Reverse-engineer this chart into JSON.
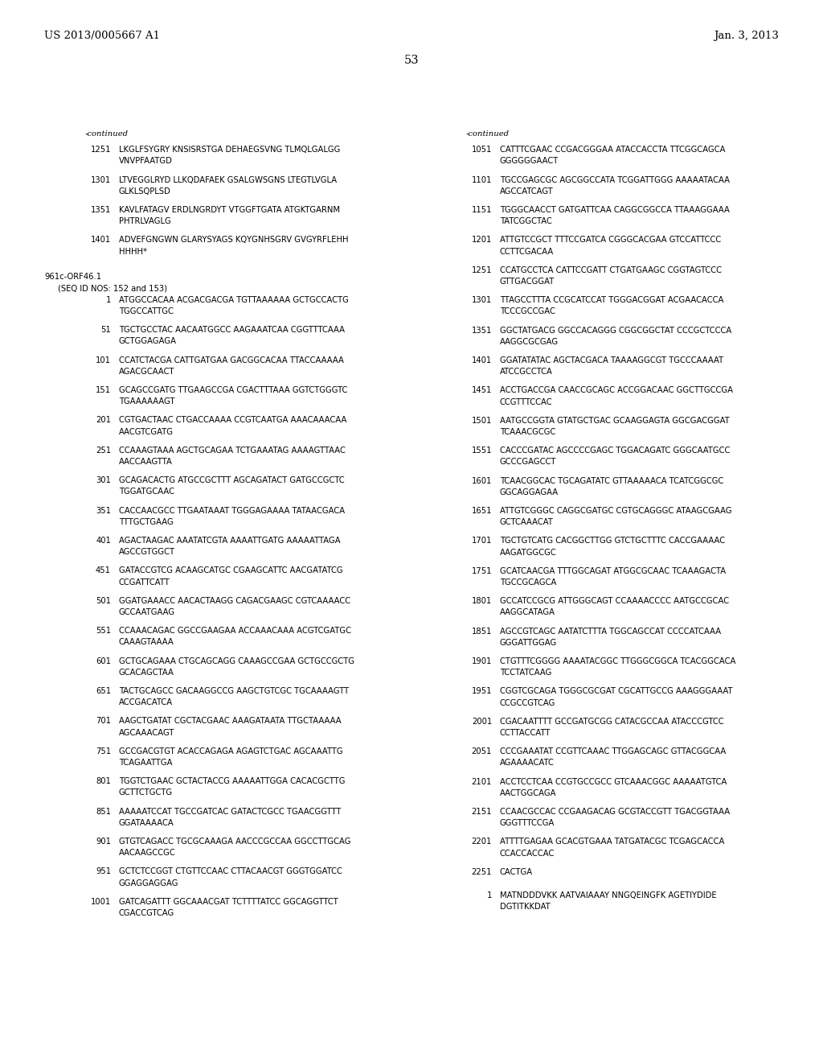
{
  "page_header_left": "US 2013/0005667 A1",
  "page_header_right": "Jan. 3, 2013",
  "page_number": "53",
  "background_color": "#ffffff",
  "text_color": "#000000",
  "font_size": 7.2,
  "header_font_size": 9.5,
  "mono_font": "Courier New",
  "left_column": [
    {
      "type": "header",
      "text": "-continued"
    },
    {
      "type": "seq",
      "num": "1251",
      "line1": "LKGLFSYGRY KNSISRSTGA DEHAEGSVNG TLMQLGALGG",
      "line2": "VNVPFAATGD"
    },
    {
      "type": "seq",
      "num": "1301",
      "line1": "LTVEGGLRYD LLKQDAFAEK GSALGWSGNS LTEGTLVGLA",
      "line2": "GLKLSQPLSD"
    },
    {
      "type": "seq",
      "num": "1351",
      "line1": "KAVLFATAGV ERDLNGRDYT VTGGFTGATA ATGKTGARNM",
      "line2": "PHTRLVAGLG"
    },
    {
      "type": "seq",
      "num": "1401",
      "line1": "ADVEFGNGWN GLARYSYAGS KQYGNHSGRV GVGYRFLEHH",
      "line2": "HHHH*"
    },
    {
      "type": "blank"
    },
    {
      "type": "section",
      "text": "961c-ORF46.1"
    },
    {
      "type": "seqid",
      "text": "(SEQ ID NOS: 152 and 153)"
    },
    {
      "type": "seq",
      "num": "1",
      "line1": "ATGGCCACAA ACGACGACGA TGTTAAAAAA GCTGCCACTG",
      "line2": "TGGCCATTGC"
    },
    {
      "type": "seq",
      "num": "51",
      "line1": "TGCTGCCTAC AACAATGGCC AAGAAATCAA CGGTTTCAAA",
      "line2": "GCTGGAGAGA"
    },
    {
      "type": "seq",
      "num": "101",
      "line1": "CCATCTACGA CATTGATGAA GACGGCACAA TTACCAAAAA",
      "line2": "AGACGCAACT"
    },
    {
      "type": "seq",
      "num": "151",
      "line1": "GCAGCCGATG TTGAAGCCGA CGACTTTAAA GGTCTGGGTC",
      "line2": "TGAAAAAAGT"
    },
    {
      "type": "seq",
      "num": "201",
      "line1": "CGTGACTAAC CTGACCAAAA CCGTCAATGA AAACAAACAA",
      "line2": "AACGTCGATG"
    },
    {
      "type": "seq",
      "num": "251",
      "line1": "CCAAAGTAAA AGCTGCAGAA TCTGAAATAG AAAAGTTAAC",
      "line2": "AACCAAGTTA"
    },
    {
      "type": "seq",
      "num": "301",
      "line1": "GCAGACACTG ATGCCGCTTT AGCAGATACT GATGCCGCTC",
      "line2": "TGGATGCAAC"
    },
    {
      "type": "seq",
      "num": "351",
      "line1": "CACCAACGCC TTGAATAAAT TGGGAGAAAA TATAACGACA",
      "line2": "TTTGCTGAAG"
    },
    {
      "type": "seq",
      "num": "401",
      "line1": "AGACTAAGAC AAATATCGTA AAAATTGATG AAAAATTAGA",
      "line2": "AGCCGTGGCT"
    },
    {
      "type": "seq",
      "num": "451",
      "line1": "GATACCGTCG ACAAGCATGC CGAAGCATTC AACGATATCG",
      "line2": "CCGATTCATT"
    },
    {
      "type": "seq",
      "num": "501",
      "line1": "GGATGAAACC AACACTAAGG CAGACGAAGC CGTCAAAACC",
      "line2": "GCCAATGAAG"
    },
    {
      "type": "seq",
      "num": "551",
      "line1": "CCAAACAGAC GGCCGAAGAA ACCAAACAAA ACGTCGATGC",
      "line2": "CAAAGTAAAA"
    },
    {
      "type": "seq",
      "num": "601",
      "line1": "GCTGCAGAAA CTGCAGCAGG CAAAGCCGAA GCTGCCGCTG",
      "line2": "GCACAGCTAA"
    },
    {
      "type": "seq",
      "num": "651",
      "line1": "TACTGCAGCC GACAAGGCCG AAGCTGTCGC TGCAAAAGTT",
      "line2": "ACCGACATCA"
    },
    {
      "type": "seq",
      "num": "701",
      "line1": "AAGCTGATAT CGCTACGAAC AAAGATAATA TTGCTAAAAA",
      "line2": "AGCAAACAGT"
    },
    {
      "type": "seq",
      "num": "751",
      "line1": "GCCGACGTGT ACACCAGAGA AGAGTCTGAC AGCAAATTG",
      "line2": "TCAGAATTGA"
    },
    {
      "type": "seq",
      "num": "801",
      "line1": "TGGTCTGAAC GCTACTACCG AAAAATTGGA CACACGCTTG",
      "line2": "GCTTCTGCTG"
    },
    {
      "type": "seq",
      "num": "851",
      "line1": "AAAAATCCAT TGCCGATCAC GATACTCGCC TGAACGGTTT",
      "line2": "GGATAAAACA"
    },
    {
      "type": "seq",
      "num": "901",
      "line1": "GTGTCAGACC TGCGCAAAGA AACCCGCCAA GGCCTTGCAG",
      "line2": "AACAAGCCGC"
    },
    {
      "type": "seq",
      "num": "951",
      "line1": "GCTCTCCGGT CTGTTCCAAC CTTACAACGT GGGTGGATCC",
      "line2": "GGAGGAGGAG"
    },
    {
      "type": "seq",
      "num": "1001",
      "line1": "GATCAGATTT GGCAAACGAT TCTTTTATCC GGCAGGTTCT",
      "line2": "CGACCGTCAG"
    }
  ],
  "right_column": [
    {
      "type": "header",
      "text": "-continued"
    },
    {
      "type": "seq",
      "num": "1051",
      "line1": "CATTTCGAAC CCGACGGGAA ATACCACCTA TTCGGCAGCA",
      "line2": "GGGGGGAACT"
    },
    {
      "type": "seq",
      "num": "1101",
      "line1": "TGCCGAGCGC AGCGGCCATA TCGGATTGGG AAAAATACAA",
      "line2": "AGCCATCAGT"
    },
    {
      "type": "seq",
      "num": "1151",
      "line1": "TGGGCAACCT GATGATTCAA CAGGCGGCCA TTAAAGGAAA",
      "line2": "TATCGGCTAC"
    },
    {
      "type": "seq",
      "num": "1201",
      "line1": "ATTGTCCGCT TTTCCGATCA CGGGCACGAA GTCCATTCCC",
      "line2": "CCTTCGACAA"
    },
    {
      "type": "seq",
      "num": "1251",
      "line1": "CCATGCCTCA CATTCCGATT CTGATGAAGC CGGTAGTCCC",
      "line2": "GTTGACGGAT"
    },
    {
      "type": "seq",
      "num": "1301",
      "line1": "TTAGCCTTTA CCGCATCCAT TGGGACGGAT ACGAACACCA",
      "line2": "TCCCGCCGAC"
    },
    {
      "type": "seq",
      "num": "1351",
      "line1": "GGCTATGACG GGCCACAGGG CGGCGGCTAT CCCGCTCCCA",
      "line2": "AAGGCGCGAG"
    },
    {
      "type": "seq",
      "num": "1401",
      "line1": "GGATATATAC AGCTACGACA TAAAAGGCGT TGCCCAAAAT",
      "line2": "ATCCGCCTCA"
    },
    {
      "type": "seq",
      "num": "1451",
      "line1": "ACCTGACCGA CAACCGCAGC ACCGGACAAC GGCTTGCCGA",
      "line2": "CCGTTTCCAC"
    },
    {
      "type": "seq",
      "num": "1501",
      "line1": "AATGCCGGTA GTATGCTGAC GCAAGGAGTA GGCGACGGAT",
      "line2": "TCAAACGCGC"
    },
    {
      "type": "seq",
      "num": "1551",
      "line1": "CACCCGATAC AGCCCCGAGC TGGACAGATC GGGCAATGCC",
      "line2": "GCCCGAGCCT"
    },
    {
      "type": "seq",
      "num": "1601",
      "line1": "TCAACGGCAC TGCAGATATC GTTAAAAACA TCATCGGCGC",
      "line2": "GGCAGGAGAA"
    },
    {
      "type": "seq",
      "num": "1651",
      "line1": "ATTGTCGGGC CAGGCGATGC CGTGCAGGGC ATAAGCGAAG",
      "line2": "GCTCAAACAT"
    },
    {
      "type": "seq",
      "num": "1701",
      "line1": "TGCTGTCATG CACGGCTTGG GTCTGCTTTC CACCGAAAAC",
      "line2": "AAGATGGCGC"
    },
    {
      "type": "seq",
      "num": "1751",
      "line1": "GCATCAACGA TTTGGCAGAT ATGGCGCAAC TCAAAGACTA",
      "line2": "TGCCGCAGCA"
    },
    {
      "type": "seq",
      "num": "1801",
      "line1": "GCCATCCGCG ATTGGGCAGT CCAAAACCCC AATGCCGCAC",
      "line2": "AAGGCATAGA"
    },
    {
      "type": "seq",
      "num": "1851",
      "line1": "AGCCGTCAGC AATATCTTTA TGGCAGCCAT CCCCATCAAA",
      "line2": "GGGATTGGAG"
    },
    {
      "type": "seq",
      "num": "1901",
      "line1": "CTGTTTCGGGG AAAATACGGC TTGGGCGGCA TCACGGCACA",
      "line2": "TCCTATCAAG"
    },
    {
      "type": "seq",
      "num": "1951",
      "line1": "CGGTCGCAGA TGGGCGCGAT CGCATTGCCG AAAGGGAAAT",
      "line2": "CCGCCGTCAG"
    },
    {
      "type": "seq",
      "num": "2001",
      "line1": "CGACAATTTT GCCGATGCGG CATACGCCAA ATACCCGTCC",
      "line2": "CCTTACCATT"
    },
    {
      "type": "seq",
      "num": "2051",
      "line1": "CCCGAAATAT CCGTTCAAAC TTGGAGCAGC GTTACGGCAA",
      "line2": "AGAAAACATC"
    },
    {
      "type": "seq",
      "num": "2101",
      "line1": "ACCTCCTCAA CCGTGCCGCC GTCAAACGGC AAAAATGTCA",
      "line2": "AACTGGCAGA"
    },
    {
      "type": "seq",
      "num": "2151",
      "line1": "CCAACGCCAC CCGAAGACAG GCGTACCGTT TGACGGTAAA",
      "line2": "GGGTTTCCGA"
    },
    {
      "type": "seq",
      "num": "2201",
      "line1": "ATTTTGAGAA GCACGTGAAA TATGATACGC TCGAGCACCA",
      "line2": "CCACCACCAC"
    },
    {
      "type": "seq",
      "num": "2251",
      "line1": "CACTGA",
      "line2": ""
    },
    {
      "type": "blank_small"
    },
    {
      "type": "aa",
      "num": "1",
      "line1": "MATNDDDVKK AATVAIAAAY NNGQEINGFK AGETIYDIDE",
      "line2": "DGTITKKDAT"
    }
  ]
}
